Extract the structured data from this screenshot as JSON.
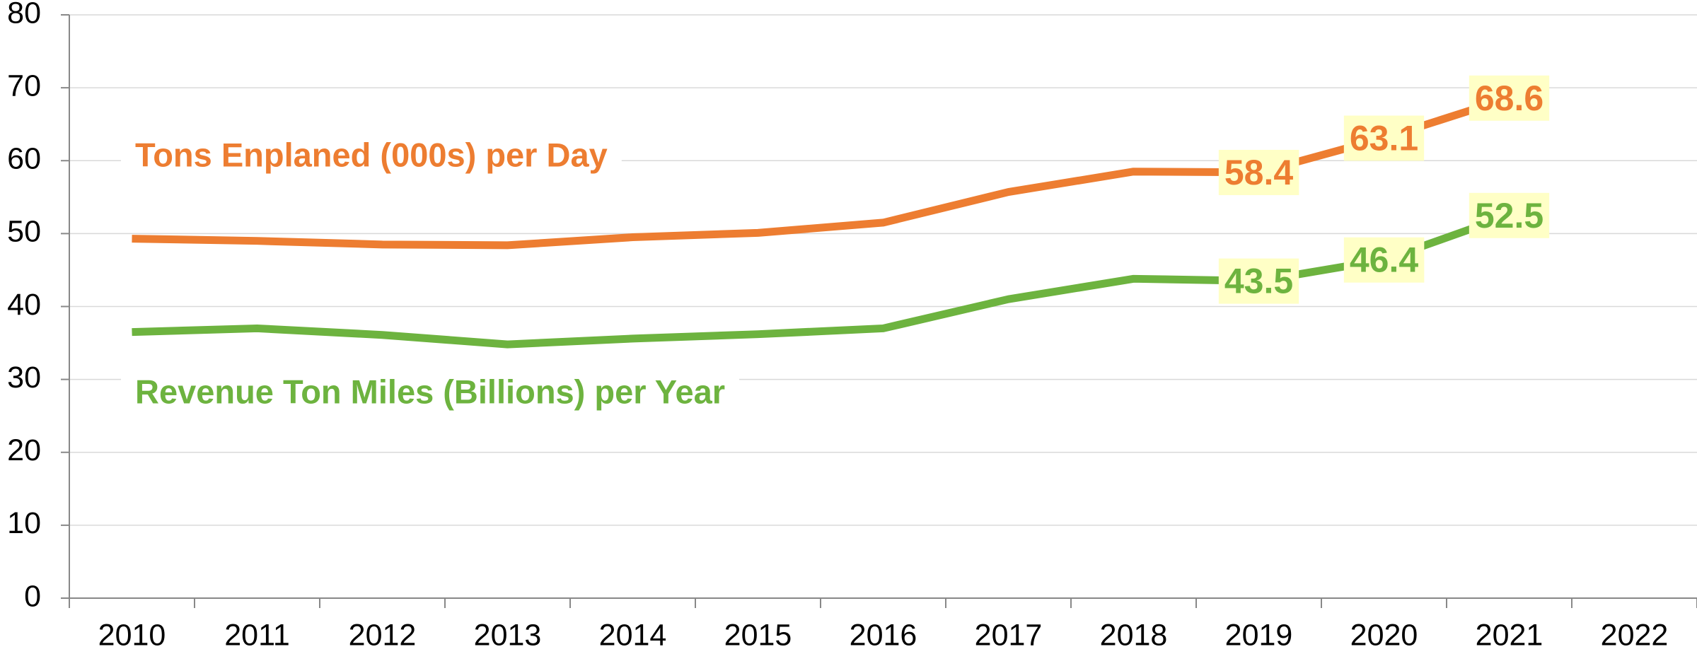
{
  "chart_data": {
    "type": "line",
    "categories": [
      "2010",
      "2011",
      "2012",
      "2013",
      "2014",
      "2015",
      "2016",
      "2017",
      "2018",
      "2019",
      "2020",
      "2021",
      "2022"
    ],
    "series": [
      {
        "name": "Tons Enplaned (000s) per Day",
        "color": "#ed7d31",
        "values": [
          49.3,
          49.0,
          48.5,
          48.4,
          49.5,
          50.1,
          51.5,
          55.7,
          58.5,
          58.4,
          63.1,
          68.6,
          null
        ],
        "value_labels": [
          null,
          null,
          null,
          null,
          null,
          null,
          null,
          null,
          null,
          "58.4",
          "63.1",
          "68.6",
          null
        ]
      },
      {
        "name": "Revenue Ton Miles (Billions) per Year",
        "color": "#6db33f",
        "values": [
          36.5,
          37.0,
          36.1,
          34.8,
          35.6,
          36.2,
          37.0,
          41.0,
          43.8,
          43.5,
          46.4,
          52.5,
          null
        ],
        "value_labels": [
          null,
          null,
          null,
          null,
          null,
          null,
          null,
          null,
          null,
          "43.5",
          "46.4",
          "52.5",
          null
        ]
      }
    ],
    "ylim": [
      0,
      80
    ],
    "yticks": [
      0,
      10,
      20,
      30,
      40,
      50,
      60,
      70,
      80
    ],
    "grid": true
  }
}
